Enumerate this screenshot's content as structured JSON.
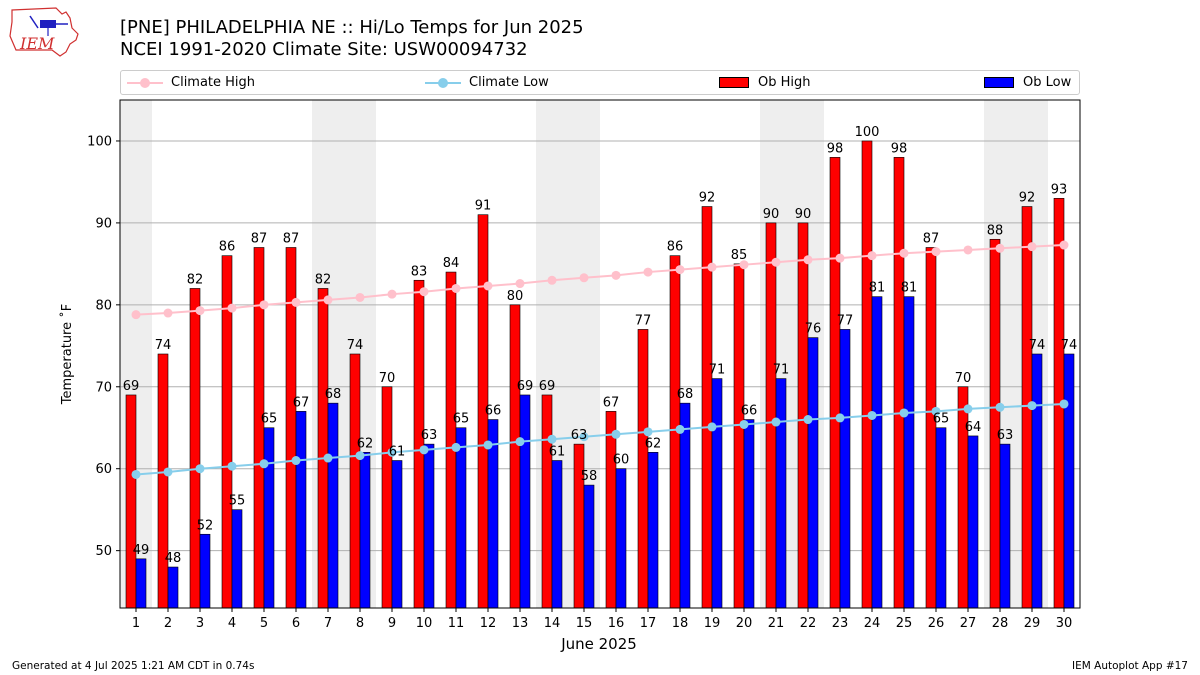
{
  "header": {
    "title_line1": "[PNE] PHILADELPHIA NE :: Hi/Lo Temps for Jun 2025",
    "title_line2": "NCEI 1991-2020 Climate Site: USW00094732"
  },
  "logo": {
    "text": "IEM"
  },
  "footer": {
    "generated": "Generated at 4 Jul 2025 1:21 AM CDT in 0.74s",
    "app": "IEM Autoplot App #17"
  },
  "colors": {
    "ob_high": "#ff0000",
    "ob_low": "#0000ff",
    "climate_high": "#ffc0cb",
    "climate_low": "#87ceeb",
    "weekend_shade": "#eeeeee",
    "grid": "#b0b0b0"
  },
  "chart_data": {
    "type": "bar",
    "xlabel": "June 2025",
    "ylabel": "Temperature ˚F",
    "ylim": [
      43,
      105
    ],
    "yticks": [
      50,
      60,
      70,
      80,
      90,
      100
    ],
    "grid": true,
    "legend_position": "top",
    "categories": [
      "1",
      "2",
      "3",
      "4",
      "5",
      "6",
      "7",
      "8",
      "9",
      "10",
      "11",
      "12",
      "13",
      "14",
      "15",
      "16",
      "17",
      "18",
      "19",
      "20",
      "21",
      "22",
      "23",
      "24",
      "25",
      "26",
      "27",
      "28",
      "29",
      "30"
    ],
    "weekend_spans": [
      [
        1,
        1
      ],
      [
        7,
        8
      ],
      [
        14,
        15
      ],
      [
        21,
        22
      ],
      [
        28,
        29
      ]
    ],
    "legend": [
      "Climate High",
      "Climate Low",
      "Ob High",
      "Ob Low"
    ],
    "series": [
      {
        "name": "Ob High",
        "type": "bar",
        "values": [
          69,
          74,
          82,
          86,
          87,
          87,
          82,
          74,
          70,
          83,
          84,
          91,
          80,
          69,
          63,
          67,
          77,
          86,
          92,
          85,
          90,
          90,
          98,
          100,
          98,
          87,
          70,
          88,
          92,
          93
        ]
      },
      {
        "name": "Ob Low",
        "type": "bar",
        "values": [
          49,
          48,
          52,
          55,
          65,
          67,
          68,
          62,
          61,
          63,
          65,
          66,
          69,
          61,
          58,
          60,
          62,
          68,
          71,
          66,
          71,
          76,
          77,
          81,
          81,
          65,
          64,
          63,
          74,
          74
        ]
      },
      {
        "name": "Climate High",
        "type": "line",
        "values": [
          78.8,
          79.0,
          79.3,
          79.6,
          80.0,
          80.3,
          80.6,
          80.9,
          81.3,
          81.6,
          82.0,
          82.3,
          82.6,
          83.0,
          83.3,
          83.6,
          84.0,
          84.3,
          84.6,
          84.9,
          85.2,
          85.5,
          85.7,
          86.0,
          86.3,
          86.5,
          86.7,
          86.9,
          87.1,
          87.3
        ]
      },
      {
        "name": "Climate Low",
        "type": "line",
        "values": [
          59.3,
          59.6,
          60.0,
          60.3,
          60.6,
          61.0,
          61.3,
          61.6,
          62.0,
          62.3,
          62.6,
          62.9,
          63.3,
          63.6,
          63.9,
          64.2,
          64.5,
          64.8,
          65.1,
          65.4,
          65.7,
          66.0,
          66.2,
          66.5,
          66.8,
          67.0,
          67.3,
          67.5,
          67.7,
          67.9
        ]
      }
    ]
  }
}
